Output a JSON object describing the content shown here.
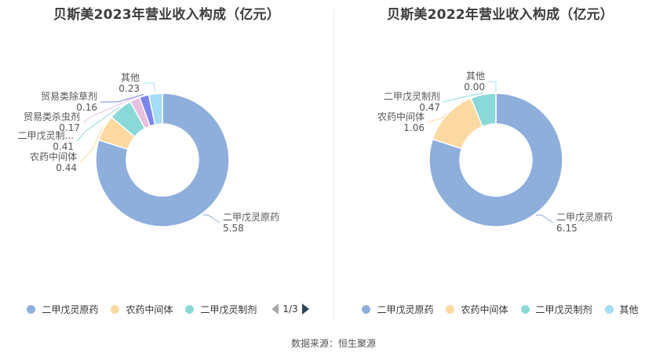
{
  "source_text": "数据来源：恒生聚源",
  "chart_data": [
    {
      "type": "pie",
      "variant": "donut",
      "title": "贝斯美2023年营业收入构成（亿元）",
      "slices": [
        {
          "name": "二甲戊灵原药",
          "label": "二甲戊灵原药",
          "value": 5.58,
          "value_text": "5.58",
          "color": "#8eaedb"
        },
        {
          "name": "农药中间体",
          "label": "农药中间体",
          "value": 0.44,
          "value_text": "0.44",
          "color": "#fcd9a0"
        },
        {
          "name": "二甲戊灵制剂",
          "label": "二甲戊灵制...",
          "value": 0.41,
          "value_text": "0.41",
          "color": "#8ad8d8"
        },
        {
          "name": "贸易类杀虫剂",
          "label": "贸易类杀虫剂",
          "value": 0.17,
          "value_text": "0.17",
          "color": "#e8bfe0"
        },
        {
          "name": "贸易类除草剂",
          "label": "贸易类除草剂",
          "value": 0.16,
          "value_text": "0.16",
          "color": "#7b85ee"
        },
        {
          "name": "其他",
          "label": "其他",
          "value": 0.23,
          "value_text": "0.23",
          "color": "#a4dcf5"
        }
      ],
      "legend": {
        "position": "bottom",
        "visible_items": [
          "二甲戊灵原药",
          "农药中间体",
          "二甲戊灵制剂"
        ],
        "page_text": "1/3"
      }
    },
    {
      "type": "pie",
      "variant": "donut",
      "title": "贝斯美2022年营业收入构成（亿元）",
      "slices": [
        {
          "name": "二甲戊灵原药",
          "label": "二甲戊灵原药",
          "value": 6.15,
          "value_text": "6.15",
          "color": "#8eaedb"
        },
        {
          "name": "农药中间体",
          "label": "农药中间体",
          "value": 1.06,
          "value_text": "1.06",
          "color": "#fcd9a0"
        },
        {
          "name": "二甲戊灵制剂",
          "label": "二甲戊灵制剂",
          "value": 0.47,
          "value_text": "0.47",
          "color": "#8ad8d8"
        },
        {
          "name": "其他",
          "label": "其他",
          "value": 0.0,
          "value_text": "0.00",
          "color": "#a4dcf5"
        }
      ],
      "legend": {
        "position": "bottom",
        "visible_items": [
          "二甲戊灵原药",
          "农药中间体",
          "二甲戊灵制剂",
          "其他"
        ]
      }
    }
  ]
}
